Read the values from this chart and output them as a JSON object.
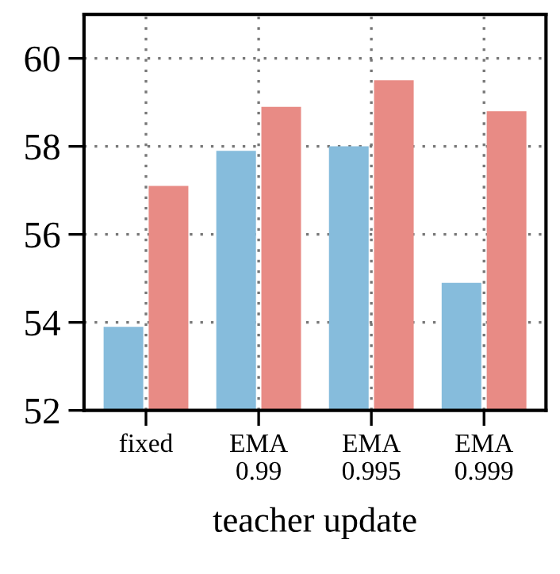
{
  "chart_data": {
    "type": "bar",
    "xlabel": "teacher update",
    "categories": [
      "fixed",
      "EMA\n0.99",
      "EMA\n0.995",
      "EMA\n0.999"
    ],
    "series": [
      {
        "color": "#86bcdc",
        "values": [
          53.9,
          57.9,
          58.0,
          54.9
        ]
      },
      {
        "color": "#e88b85",
        "values": [
          57.1,
          58.9,
          59.5,
          58.8
        ]
      }
    ],
    "ylim": [
      52,
      61
    ],
    "yticks": [
      52,
      54,
      56,
      58,
      60
    ],
    "grid": true
  }
}
